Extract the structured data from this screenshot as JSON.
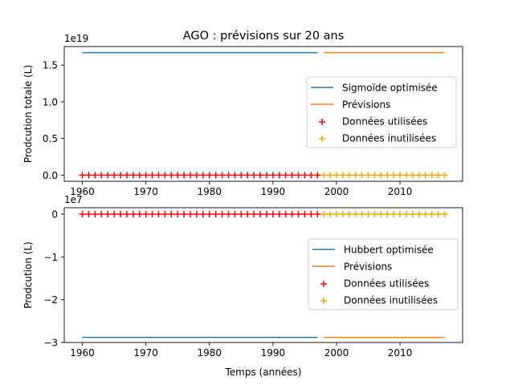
{
  "title": "AGO : prévisions sur 20 ans",
  "chart_data": [
    {
      "type": "line",
      "ylabel": "Prodcution totale (L)",
      "offset_text": "1e19",
      "xlim": [
        1957.15,
        2019.85
      ],
      "ylim": [
        -0.0835,
        1.7535
      ],
      "xticks": [
        1960,
        1970,
        1980,
        1990,
        2000,
        2010
      ],
      "xtick_labels": [
        "1960",
        "1970",
        "1980",
        "1990",
        "2000",
        "2010"
      ],
      "yticks": [
        0.0,
        0.5,
        1.0,
        1.5
      ],
      "ytick_labels": [
        "0.0",
        "0.5",
        "1.0",
        "1.5"
      ],
      "series": [
        {
          "name": "Sigmoïde optimisée",
          "kind": "line",
          "color": "#1f77b4",
          "x": [
            1960,
            1997
          ],
          "y": [
            1.67,
            1.67
          ]
        },
        {
          "name": "Prévisions",
          "kind": "line",
          "color": "#ff7f0e",
          "x": [
            1998,
            2017
          ],
          "y": [
            1.67,
            1.67
          ]
        },
        {
          "name": "Données utilisées",
          "kind": "scatter",
          "marker": "+",
          "color": "#ff0000",
          "x_range": [
            1960,
            1997
          ],
          "y": 0.0
        },
        {
          "name": "Données inutilisées",
          "kind": "scatter",
          "marker": "+",
          "color": "#ffa500",
          "x_range": [
            1998,
            2017
          ],
          "y": 0.0
        }
      ],
      "legend_position": "center-right"
    },
    {
      "type": "line",
      "xlabel": "Temps (années)",
      "ylabel": "Prodcution (L)",
      "offset_text": "1e7",
      "xlim": [
        1957.15,
        2019.85
      ],
      "ylim": [
        -3.0,
        0.15
      ],
      "xticks": [
        1960,
        1970,
        1980,
        1990,
        2000,
        2010
      ],
      "xtick_labels": [
        "1960",
        "1970",
        "1980",
        "1990",
        "2000",
        "2010"
      ],
      "yticks": [
        0,
        -1,
        -2,
        -3
      ],
      "ytick_labels": [
        "0",
        "−1",
        "−2",
        "−3"
      ],
      "series": [
        {
          "name": "Hubbert optimisée",
          "kind": "line",
          "color": "#1f77b4",
          "x": [
            1960,
            1997
          ],
          "y": [
            -2.88,
            -2.88
          ]
        },
        {
          "name": "Prévisions",
          "kind": "line",
          "color": "#ff7f0e",
          "x": [
            1998,
            2017
          ],
          "y": [
            -2.88,
            -2.88
          ]
        },
        {
          "name": "Données utilisées",
          "kind": "scatter",
          "marker": "+",
          "color": "#ff0000",
          "x_range": [
            1960,
            1997
          ],
          "y": 0.0
        },
        {
          "name": "Données inutilisées",
          "kind": "scatter",
          "marker": "+",
          "color": "#ffa500",
          "x_range": [
            1998,
            2017
          ],
          "y": 0.0
        }
      ],
      "legend_position": "center-right"
    }
  ]
}
